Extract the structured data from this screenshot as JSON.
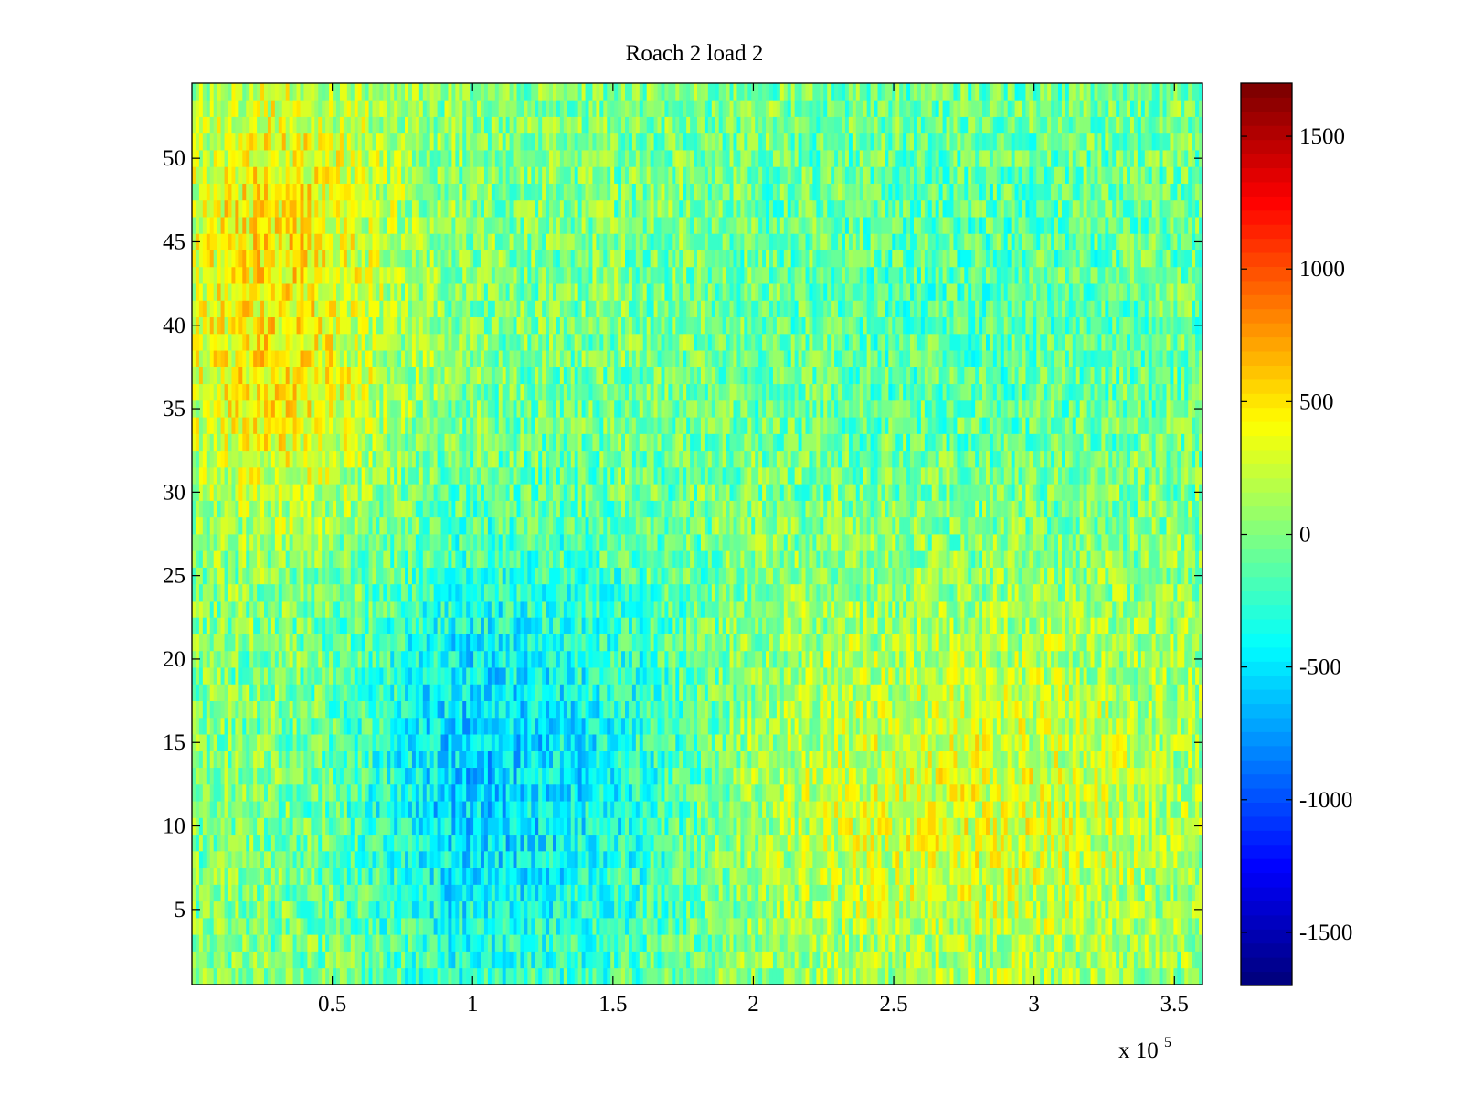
{
  "chart_data": {
    "type": "heatmap",
    "title": "Roach 2 load 2",
    "xlabel": "",
    "ylabel": "",
    "x_exponent_label": {
      "base": "x 10",
      "exponent": "5"
    },
    "xlim": [
      0,
      3.6
    ],
    "ylim": [
      0.5,
      54.5
    ],
    "x_ticks": [
      {
        "value": 0.5,
        "label": "0.5"
      },
      {
        "value": 1,
        "label": "1"
      },
      {
        "value": 1.5,
        "label": "1.5"
      },
      {
        "value": 2,
        "label": "2"
      },
      {
        "value": 2.5,
        "label": "2.5"
      },
      {
        "value": 3,
        "label": "3"
      },
      {
        "value": 3.5,
        "label": "3.5"
      }
    ],
    "y_ticks": [
      {
        "value": 5,
        "label": "5"
      },
      {
        "value": 10,
        "label": "10"
      },
      {
        "value": 15,
        "label": "15"
      },
      {
        "value": 20,
        "label": "20"
      },
      {
        "value": 25,
        "label": "25"
      },
      {
        "value": 30,
        "label": "30"
      },
      {
        "value": 35,
        "label": "35"
      },
      {
        "value": 40,
        "label": "40"
      },
      {
        "value": 45,
        "label": "45"
      },
      {
        "value": 50,
        "label": "50"
      }
    ],
    "colorbar": {
      "colormap": "jet",
      "clim": [
        -1700,
        1700
      ],
      "ticks": [
        {
          "value": 1500,
          "label": "1500"
        },
        {
          "value": 1000,
          "label": "1000"
        },
        {
          "value": 500,
          "label": "500"
        },
        {
          "value": 0,
          "label": "0"
        },
        {
          "value": -500,
          "label": "-500"
        },
        {
          "value": -1000,
          "label": "-1000"
        },
        {
          "value": -1500,
          "label": "-1500"
        }
      ]
    },
    "rows": 54,
    "regional_mean_values": [
      {
        "x_range": [
          0,
          0.6
        ],
        "y_range": [
          40,
          54
        ],
        "mean": 450
      },
      {
        "x_range": [
          0,
          0.6
        ],
        "y_range": [
          30,
          40
        ],
        "mean": 350
      },
      {
        "x_range": [
          0.7,
          1.3
        ],
        "y_range": [
          1,
          25
        ],
        "mean": -550
      },
      {
        "x_range": [
          1.3,
          1.8
        ],
        "y_range": [
          1,
          25
        ],
        "mean": -300
      },
      {
        "x_range": [
          1.9,
          3.6
        ],
        "y_range": [
          1,
          22
        ],
        "mean": 300
      },
      {
        "x_range": [
          1.9,
          3.6
        ],
        "y_range": [
          30,
          54
        ],
        "mean": -150
      }
    ],
    "grid": false,
    "legend": "colorbar-right"
  }
}
